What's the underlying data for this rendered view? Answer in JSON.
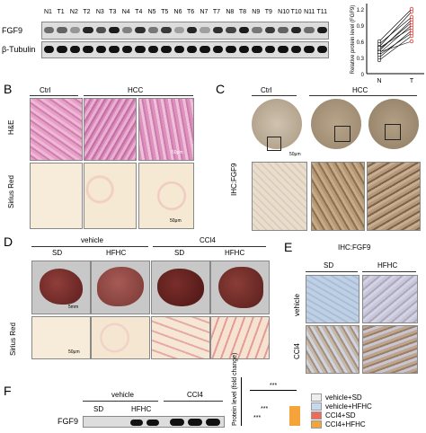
{
  "panelA": {
    "lanes": [
      "N1",
      "T1",
      "N2",
      "T2",
      "N3",
      "T3",
      "N4",
      "T4",
      "N5",
      "T5",
      "N6",
      "T6",
      "N7",
      "T7",
      "N8",
      "T8",
      "N9",
      "T9",
      "N10",
      "T10",
      "N11",
      "T11"
    ],
    "row1_label": "FGF9",
    "row2_label": "β-Tubulin",
    "fgf9_intensity": [
      0.55,
      0.6,
      0.35,
      0.9,
      0.7,
      0.95,
      0.45,
      0.85,
      0.5,
      0.8,
      0.3,
      0.9,
      0.3,
      0.85,
      0.75,
      0.95,
      0.5,
      0.8,
      0.6,
      0.9,
      0.55,
      0.95
    ],
    "plot": {
      "ylabel": "Relative protein level (FGF9)",
      "xticks": [
        "N",
        "T"
      ],
      "yticks": [
        "1.2",
        "0.9",
        "0.6",
        "0.3",
        "0"
      ]
    }
  },
  "panelB": {
    "letter": "B",
    "ctrl": "Ctrl",
    "hcc": "HCC",
    "row1": "H&E",
    "row2": "Sirius Red",
    "scale": "50μm"
  },
  "panelC": {
    "letter": "C",
    "ctrl": "Ctrl",
    "hcc": "HCC",
    "row": "IHC:FGF9",
    "scale": "50μm"
  },
  "panelD": {
    "letter": "D",
    "vehicle": "vehicle",
    "ccl4": "CCl4",
    "sd1": "SD",
    "hfhc1": "HFHC",
    "sd2": "SD",
    "hfhc2": "HFHC",
    "row2": "Sirius Red",
    "scale_liver": "5mm",
    "scale": "50μm"
  },
  "panelE": {
    "letter": "E",
    "title": "IHC:FGF9",
    "sd": "SD",
    "hfhc": "HFHC",
    "row1": "vehicle",
    "row2": "CCl4"
  },
  "panelF": {
    "letter": "F",
    "vehicle": "vehicle",
    "ccl4": "CCl4",
    "sd1": "SD",
    "hfhc1": "HFHC",
    "row": "FGF9",
    "ylabel": "Protein level (fold change)",
    "sig": "***",
    "legend": [
      {
        "label": "vehicle+SD",
        "color": "#eeeeee"
      },
      {
        "label": "vehicle+HFHC",
        "color": "#c9d7ef"
      },
      {
        "label": "CCl4+SD",
        "color": "#ee6a5a"
      },
      {
        "label": "CCl4+HFHC",
        "color": "#f5a43a"
      }
    ]
  }
}
